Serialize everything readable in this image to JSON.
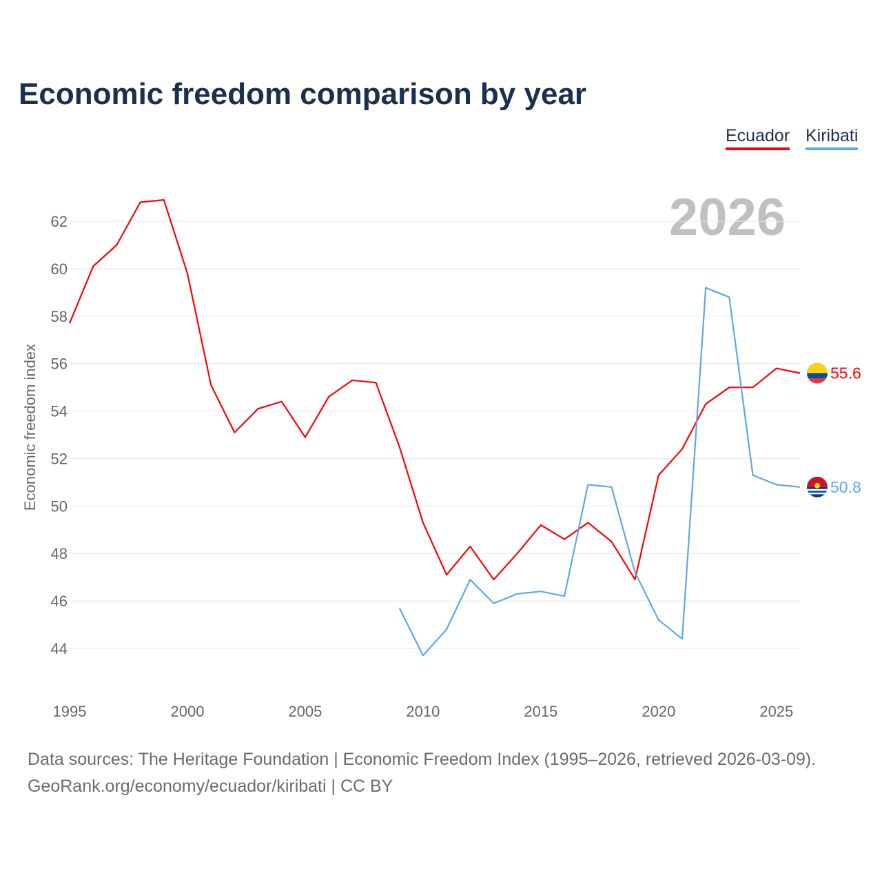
{
  "title": "Economic freedom comparison by year",
  "legend": [
    {
      "label": "Ecuador",
      "color": "#ff0000"
    },
    {
      "label": "Kiribati",
      "color": "#5ea6ea"
    }
  ],
  "sources": {
    "line1": "Data sources: The Heritage Foundation | Economic Freedom Index (1995–2026, retrieved 2026-03-09).",
    "line2": "GeoRank.org/economy/ecuador/kiribati | CC BY"
  },
  "chart_data": {
    "type": "line",
    "title": "Economic freedom comparison by year",
    "xlabel": "",
    "ylabel": "Economic freedom index",
    "year_watermark": "2026",
    "xlim": [
      1995,
      2026
    ],
    "ylim": [
      42,
      64
    ],
    "xticks": [
      "1995",
      "2000",
      "2005",
      "2010",
      "2015",
      "2020",
      "2025"
    ],
    "yticks": [
      "44",
      "46",
      "48",
      "50",
      "52",
      "54",
      "56",
      "58",
      "60",
      "62"
    ],
    "grid": true,
    "legend_position": "top-right",
    "series": [
      {
        "name": "Ecuador",
        "color": "#ff0000",
        "end_label": "55.6",
        "x": [
          1995,
          1996,
          1997,
          1998,
          1999,
          2000,
          2001,
          2002,
          2003,
          2004,
          2005,
          2006,
          2007,
          2008,
          2009,
          2010,
          2011,
          2012,
          2013,
          2014,
          2015,
          2016,
          2017,
          2018,
          2019,
          2020,
          2021,
          2022,
          2023,
          2024,
          2025,
          2026
        ],
        "values": [
          57.7,
          60.1,
          61.0,
          62.8,
          62.9,
          59.8,
          55.1,
          53.1,
          54.1,
          54.4,
          52.9,
          54.6,
          55.3,
          55.2,
          52.5,
          49.3,
          47.1,
          48.3,
          46.9,
          48.0,
          49.2,
          48.6,
          49.3,
          48.5,
          46.9,
          51.3,
          52.4,
          54.3,
          55.0,
          55.0,
          55.8,
          55.6
        ]
      },
      {
        "name": "Kiribati",
        "color": "#5ea6ea",
        "end_label": "50.8",
        "x": [
          2009,
          2010,
          2011,
          2012,
          2013,
          2014,
          2015,
          2016,
          2017,
          2018,
          2019,
          2020,
          2021,
          2022,
          2023,
          2024,
          2025,
          2026
        ],
        "values": [
          45.7,
          43.7,
          44.8,
          46.9,
          45.9,
          46.3,
          46.4,
          46.2,
          50.9,
          50.8,
          47.2,
          45.2,
          44.4,
          59.2,
          58.8,
          51.3,
          50.9,
          50.8
        ]
      }
    ]
  }
}
